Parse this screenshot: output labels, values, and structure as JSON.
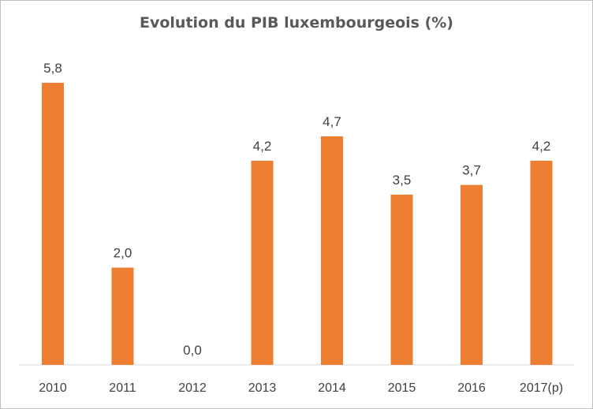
{
  "chart_data": {
    "type": "bar",
    "title": "Evolution du PIB luxembourgeois (%)",
    "categories": [
      "2010",
      "2011",
      "2012",
      "2013",
      "2014",
      "2015",
      "2016",
      "2017(p)"
    ],
    "values": [
      5.8,
      2.0,
      0.0,
      4.2,
      4.7,
      3.5,
      3.7,
      4.2
    ],
    "data_labels": [
      "5,8",
      "2,0",
      "0,0",
      "4,2",
      "4,7",
      "3,5",
      "3,7",
      "4,2"
    ],
    "xlabel": "",
    "ylabel": "",
    "ylim": [
      0,
      6
    ],
    "grid": false,
    "legend": "none",
    "bar_color": "#ED7D31"
  }
}
